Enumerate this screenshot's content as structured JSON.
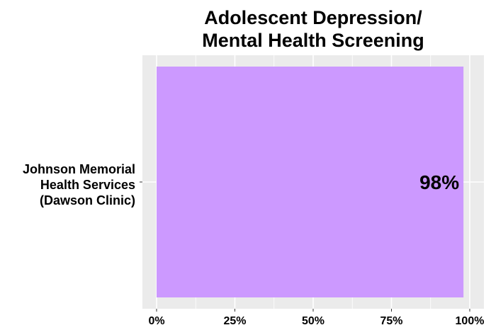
{
  "chart_data": {
    "type": "bar",
    "orientation": "horizontal",
    "title": "Adolescent Depression/ Mental Health Screening",
    "title_lines": [
      "Adolescent Depression/",
      "Mental Health Screening"
    ],
    "categories": [
      "Johnson Memorial Health Services (Dawson Clinic)"
    ],
    "category_label_lines": [
      [
        "Johnson Memorial",
        "Health Services",
        "(Dawson Clinic)"
      ]
    ],
    "values": [
      98
    ],
    "data_labels": [
      "98%"
    ],
    "xlim": [
      0,
      100
    ],
    "xticks": [
      0,
      25,
      50,
      75,
      100
    ],
    "xtick_labels": [
      "0%",
      "25%",
      "50%",
      "75%",
      "100%"
    ],
    "xlabel": "",
    "ylabel": "",
    "grid": true,
    "legend": "none",
    "colors": {
      "bar": "#CC99FF",
      "panel_background": "#EBEBEB",
      "gridline": "#FFFFFF"
    }
  }
}
